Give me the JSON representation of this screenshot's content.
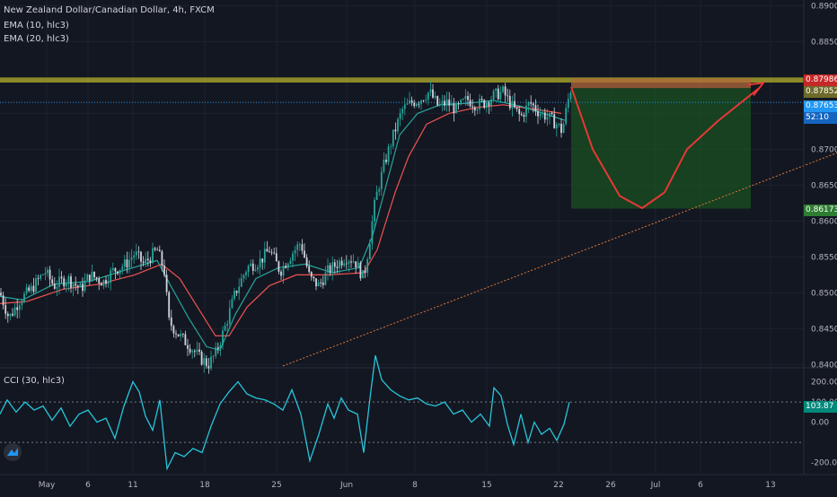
{
  "legend": {
    "symbol_line": "New Zealand Dollar/Canadian Dollar, 4h, FXCM",
    "ema_fast": "EMA (10, hlc3)",
    "ema_slow": "EMA (20, hlc3)",
    "cci": "CCI (30, hlc3)"
  },
  "colors": {
    "background": "#131722",
    "up": "#26a69a",
    "down": "#ef5350",
    "candle_body": "#d1d4dc",
    "ema_fast": "#26a69a",
    "ema_slow": "#ef5350",
    "resistance_zone": "#a39e2a",
    "target_zone": "#1b5e20",
    "stop_zone": "#b26a3a",
    "trendline": "#e07a3a",
    "projection": "#e53935",
    "cci_line": "#26c6da",
    "current_price": "#2196f3"
  },
  "chart_data": {
    "type": "candlestick",
    "symbol": "NZDCAD",
    "timeframe": "4h",
    "ylim": [
      0.8398,
      0.8908
    ],
    "yticks": [
      "0.89000",
      "0.88500",
      "0.88000",
      "0.87500",
      "0.87000",
      "0.86500",
      "0.86000",
      "0.85500",
      "0.85000",
      "0.84500",
      "0.84000"
    ],
    "xticks": [
      "May",
      "6",
      "11",
      "18",
      "25",
      "Jun",
      "8",
      "15",
      "22",
      "26",
      "Jul",
      "6",
      "13"
    ],
    "price_labels": {
      "resistance": "0.87986",
      "entry": "0.87852",
      "current": "0.87653",
      "countdown": "52:10",
      "target": "0.86173"
    },
    "price_values": {
      "resistance_top": 0.88,
      "resistance_bottom": 0.8793,
      "entry": 0.87852,
      "current": 0.87653,
      "target": 0.86173
    },
    "price_path": [
      [
        0,
        0.85
      ],
      [
        10,
        0.8465
      ],
      [
        22,
        0.849
      ],
      [
        35,
        0.8505
      ],
      [
        50,
        0.853
      ],
      [
        60,
        0.851
      ],
      [
        75,
        0.852
      ],
      [
        90,
        0.8505
      ],
      [
        100,
        0.8525
      ],
      [
        115,
        0.8515
      ],
      [
        125,
        0.853
      ],
      [
        140,
        0.854
      ],
      [
        150,
        0.8555
      ],
      [
        160,
        0.854
      ],
      [
        175,
        0.856
      ],
      [
        183,
        0.853
      ],
      [
        188,
        0.846
      ],
      [
        200,
        0.844
      ],
      [
        212,
        0.8425
      ],
      [
        222,
        0.841
      ],
      [
        232,
        0.84
      ],
      [
        240,
        0.8415
      ],
      [
        250,
        0.845
      ],
      [
        262,
        0.85
      ],
      [
        275,
        0.8535
      ],
      [
        290,
        0.8545
      ],
      [
        300,
        0.856
      ],
      [
        312,
        0.853
      ],
      [
        325,
        0.8555
      ],
      [
        335,
        0.857
      ],
      [
        345,
        0.852
      ],
      [
        355,
        0.851
      ],
      [
        365,
        0.853
      ],
      [
        375,
        0.854
      ],
      [
        385,
        0.855
      ],
      [
        395,
        0.8545
      ],
      [
        405,
        0.852
      ],
      [
        410,
        0.856
      ],
      [
        418,
        0.863
      ],
      [
        428,
        0.868
      ],
      [
        438,
        0.872
      ],
      [
        448,
        0.8755
      ],
      [
        458,
        0.8765
      ],
      [
        468,
        0.877
      ],
      [
        478,
        0.878
      ],
      [
        488,
        0.876
      ],
      [
        498,
        0.8765
      ],
      [
        508,
        0.8755
      ],
      [
        520,
        0.877
      ],
      [
        530,
        0.8762
      ],
      [
        540,
        0.8765
      ],
      [
        550,
        0.8775
      ],
      [
        560,
        0.878
      ],
      [
        570,
        0.876
      ],
      [
        580,
        0.8745
      ],
      [
        590,
        0.8765
      ],
      [
        600,
        0.8752
      ],
      [
        610,
        0.8745
      ],
      [
        620,
        0.8735
      ],
      [
        626,
        0.8725
      ],
      [
        632,
        0.8765
      ],
      [
        636,
        0.8787
      ]
    ],
    "cci_ylim": [
      -250,
      260
    ],
    "cci_yticks": [
      "200.00",
      "100.00",
      "0.00",
      "-200.00"
    ],
    "cci_current": "103.87",
    "cci_path": [
      [
        0,
        40
      ],
      [
        8,
        110
      ],
      [
        18,
        50
      ],
      [
        28,
        100
      ],
      [
        38,
        60
      ],
      [
        48,
        80
      ],
      [
        58,
        10
      ],
      [
        68,
        70
      ],
      [
        78,
        -20
      ],
      [
        88,
        40
      ],
      [
        98,
        60
      ],
      [
        108,
        0
      ],
      [
        118,
        20
      ],
      [
        128,
        -80
      ],
      [
        138,
        80
      ],
      [
        148,
        200
      ],
      [
        155,
        150
      ],
      [
        162,
        30
      ],
      [
        170,
        -40
      ],
      [
        178,
        110
      ],
      [
        186,
        -230
      ],
      [
        195,
        -150
      ],
      [
        205,
        -170
      ],
      [
        215,
        -130
      ],
      [
        225,
        -150
      ],
      [
        235,
        -20
      ],
      [
        245,
        90
      ],
      [
        255,
        150
      ],
      [
        265,
        200
      ],
      [
        275,
        140
      ],
      [
        285,
        120
      ],
      [
        295,
        110
      ],
      [
        305,
        90
      ],
      [
        315,
        60
      ],
      [
        325,
        160
      ],
      [
        335,
        40
      ],
      [
        345,
        -190
      ],
      [
        355,
        -60
      ],
      [
        365,
        90
      ],
      [
        372,
        20
      ],
      [
        380,
        120
      ],
      [
        388,
        60
      ],
      [
        398,
        40
      ],
      [
        405,
        -150
      ],
      [
        412,
        120
      ],
      [
        418,
        330
      ],
      [
        425,
        210
      ],
      [
        435,
        160
      ],
      [
        445,
        130
      ],
      [
        455,
        110
      ],
      [
        465,
        120
      ],
      [
        475,
        90
      ],
      [
        485,
        80
      ],
      [
        495,
        100
      ],
      [
        505,
        40
      ],
      [
        515,
        60
      ],
      [
        525,
        0
      ],
      [
        535,
        40
      ],
      [
        545,
        -20
      ],
      [
        550,
        170
      ],
      [
        558,
        130
      ],
      [
        565,
        -10
      ],
      [
        572,
        -110
      ],
      [
        580,
        40
      ],
      [
        588,
        -100
      ],
      [
        595,
        0
      ],
      [
        603,
        -60
      ],
      [
        612,
        -30
      ],
      [
        620,
        -90
      ],
      [
        628,
        -10
      ],
      [
        634,
        100
      ]
    ],
    "ema_fast_path": [
      [
        0,
        0.8495
      ],
      [
        25,
        0.849
      ],
      [
        60,
        0.8512
      ],
      [
        100,
        0.8516
      ],
      [
        140,
        0.8532
      ],
      [
        175,
        0.8545
      ],
      [
        190,
        0.851
      ],
      [
        210,
        0.8465
      ],
      [
        230,
        0.8425
      ],
      [
        245,
        0.842
      ],
      [
        262,
        0.847
      ],
      [
        285,
        0.852
      ],
      [
        310,
        0.8535
      ],
      [
        340,
        0.854
      ],
      [
        370,
        0.8528
      ],
      [
        400,
        0.8535
      ],
      [
        415,
        0.858
      ],
      [
        430,
        0.865
      ],
      [
        445,
        0.872
      ],
      [
        465,
        0.875
      ],
      [
        490,
        0.8762
      ],
      [
        520,
        0.8764
      ],
      [
        550,
        0.8768
      ],
      [
        580,
        0.876
      ],
      [
        610,
        0.8748
      ],
      [
        630,
        0.874
      ]
    ],
    "ema_slow_path": [
      [
        0,
        0.8485
      ],
      [
        30,
        0.8488
      ],
      [
        70,
        0.8505
      ],
      [
        110,
        0.8512
      ],
      [
        150,
        0.8525
      ],
      [
        180,
        0.854
      ],
      [
        200,
        0.852
      ],
      [
        220,
        0.848
      ],
      [
        240,
        0.844
      ],
      [
        255,
        0.844
      ],
      [
        275,
        0.848
      ],
      [
        300,
        0.851
      ],
      [
        330,
        0.8525
      ],
      [
        365,
        0.8525
      ],
      [
        405,
        0.8528
      ],
      [
        420,
        0.856
      ],
      [
        440,
        0.864
      ],
      [
        455,
        0.869
      ],
      [
        475,
        0.8735
      ],
      [
        500,
        0.875
      ],
      [
        530,
        0.8758
      ],
      [
        560,
        0.8762
      ],
      [
        595,
        0.8756
      ],
      [
        625,
        0.875
      ]
    ],
    "trendline": {
      "from": [
        315,
        0.8398
      ],
      "to": [
        932,
        0.8695
      ]
    },
    "projection_path": [
      [
        636,
        0.8787
      ],
      [
        660,
        0.87
      ],
      [
        690,
        0.8635
      ],
      [
        715,
        0.8618
      ],
      [
        740,
        0.864
      ],
      [
        765,
        0.87
      ],
      [
        800,
        0.874
      ],
      [
        845,
        0.8785
      ]
    ],
    "zones": {
      "target_box": {
        "x0": 636,
        "x1": 836,
        "top": 0.87852,
        "bottom": 0.86173
      },
      "stop_box": {
        "x0": 636,
        "x1": 836,
        "top": 0.87986,
        "bottom": 0.87852
      }
    }
  }
}
